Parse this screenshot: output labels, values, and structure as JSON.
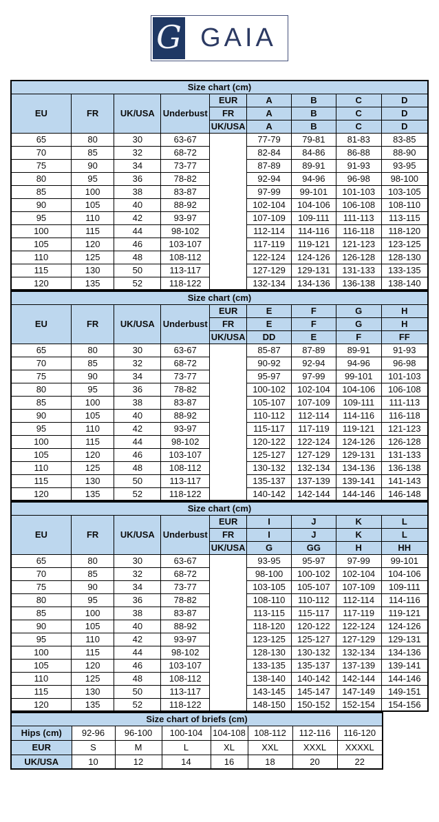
{
  "logo": {
    "monogram": "G",
    "brand": "GAIA"
  },
  "layout_colors": {
    "header_blue": "#bdd7ee",
    "logo_navy": "#1f3864",
    "border_black": "#000000"
  },
  "bra_tables": [
    {
      "title": "Size chart (cm)",
      "col_headers": [
        "EU",
        "FR",
        "UK/USA",
        "Underbust"
      ],
      "cup_rows": [
        {
          "label": "EUR",
          "cups": [
            "A",
            "B",
            "C",
            "D"
          ]
        },
        {
          "label": "FR",
          "cups": [
            "A",
            "B",
            "C",
            "D"
          ]
        },
        {
          "label": "UK/USA",
          "cups": [
            "A",
            "B",
            "C",
            "D"
          ]
        }
      ],
      "rows": [
        {
          "eu": "65",
          "fr": "80",
          "uk_usa": "30",
          "underbust": "63-67",
          "cups": [
            "77-79",
            "79-81",
            "81-83",
            "83-85"
          ]
        },
        {
          "eu": "70",
          "fr": "85",
          "uk_usa": "32",
          "underbust": "68-72",
          "cups": [
            "82-84",
            "84-86",
            "86-88",
            "88-90"
          ]
        },
        {
          "eu": "75",
          "fr": "90",
          "uk_usa": "34",
          "underbust": "73-77",
          "cups": [
            "87-89",
            "89-91",
            "91-93",
            "93-95"
          ]
        },
        {
          "eu": "80",
          "fr": "95",
          "uk_usa": "36",
          "underbust": "78-82",
          "cups": [
            "92-94",
            "94-96",
            "96-98",
            "98-100"
          ]
        },
        {
          "eu": "85",
          "fr": "100",
          "uk_usa": "38",
          "underbust": "83-87",
          "cups": [
            "97-99",
            "99-101",
            "101-103",
            "103-105"
          ]
        },
        {
          "eu": "90",
          "fr": "105",
          "uk_usa": "40",
          "underbust": "88-92",
          "cups": [
            "102-104",
            "104-106",
            "106-108",
            "108-110"
          ]
        },
        {
          "eu": "95",
          "fr": "110",
          "uk_usa": "42",
          "underbust": "93-97",
          "cups": [
            "107-109",
            "109-111",
            "111-113",
            "113-115"
          ]
        },
        {
          "eu": "100",
          "fr": "115",
          "uk_usa": "44",
          "underbust": "98-102",
          "cups": [
            "112-114",
            "114-116",
            "116-118",
            "118-120"
          ]
        },
        {
          "eu": "105",
          "fr": "120",
          "uk_usa": "46",
          "underbust": "103-107",
          "cups": [
            "117-119",
            "119-121",
            "121-123",
            "123-125"
          ]
        },
        {
          "eu": "110",
          "fr": "125",
          "uk_usa": "48",
          "underbust": "108-112",
          "cups": [
            "122-124",
            "124-126",
            "126-128",
            "128-130"
          ]
        },
        {
          "eu": "115",
          "fr": "130",
          "uk_usa": "50",
          "underbust": "113-117",
          "cups": [
            "127-129",
            "129-131",
            "131-133",
            "133-135"
          ]
        },
        {
          "eu": "120",
          "fr": "135",
          "uk_usa": "52",
          "underbust": "118-122",
          "cups": [
            "132-134",
            "134-136",
            "136-138",
            "138-140"
          ]
        }
      ]
    },
    {
      "title": "Size chart (cm)",
      "col_headers": [
        "EU",
        "FR",
        "UK/USA",
        "Underbust"
      ],
      "cup_rows": [
        {
          "label": "EUR",
          "cups": [
            "E",
            "F",
            "G",
            "H"
          ]
        },
        {
          "label": "FR",
          "cups": [
            "E",
            "F",
            "G",
            "H"
          ]
        },
        {
          "label": "UK/USA",
          "cups": [
            "DD",
            "E",
            "F",
            "FF"
          ]
        }
      ],
      "rows": [
        {
          "eu": "65",
          "fr": "80",
          "uk_usa": "30",
          "underbust": "63-67",
          "cups": [
            "85-87",
            "87-89",
            "89-91",
            "91-93"
          ]
        },
        {
          "eu": "70",
          "fr": "85",
          "uk_usa": "32",
          "underbust": "68-72",
          "cups": [
            "90-92",
            "92-94",
            "94-96",
            "96-98"
          ]
        },
        {
          "eu": "75",
          "fr": "90",
          "uk_usa": "34",
          "underbust": "73-77",
          "cups": [
            "95-97",
            "97-99",
            "99-101",
            "101-103"
          ]
        },
        {
          "eu": "80",
          "fr": "95",
          "uk_usa": "36",
          "underbust": "78-82",
          "cups": [
            "100-102",
            "102-104",
            "104-106",
            "106-108"
          ]
        },
        {
          "eu": "85",
          "fr": "100",
          "uk_usa": "38",
          "underbust": "83-87",
          "cups": [
            "105-107",
            "107-109",
            "109-111",
            "111-113"
          ]
        },
        {
          "eu": "90",
          "fr": "105",
          "uk_usa": "40",
          "underbust": "88-92",
          "cups": [
            "110-112",
            "112-114",
            "114-116",
            "116-118"
          ]
        },
        {
          "eu": "95",
          "fr": "110",
          "uk_usa": "42",
          "underbust": "93-97",
          "cups": [
            "115-117",
            "117-119",
            "119-121",
            "121-123"
          ]
        },
        {
          "eu": "100",
          "fr": "115",
          "uk_usa": "44",
          "underbust": "98-102",
          "cups": [
            "120-122",
            "122-124",
            "124-126",
            "126-128"
          ]
        },
        {
          "eu": "105",
          "fr": "120",
          "uk_usa": "46",
          "underbust": "103-107",
          "cups": [
            "125-127",
            "127-129",
            "129-131",
            "131-133"
          ]
        },
        {
          "eu": "110",
          "fr": "125",
          "uk_usa": "48",
          "underbust": "108-112",
          "cups": [
            "130-132",
            "132-134",
            "134-136",
            "136-138"
          ]
        },
        {
          "eu": "115",
          "fr": "130",
          "uk_usa": "50",
          "underbust": "113-117",
          "cups": [
            "135-137",
            "137-139",
            "139-141",
            "141-143"
          ]
        },
        {
          "eu": "120",
          "fr": "135",
          "uk_usa": "52",
          "underbust": "118-122",
          "cups": [
            "140-142",
            "142-144",
            "144-146",
            "146-148"
          ]
        }
      ]
    },
    {
      "title": "Size chart (cm)",
      "col_headers": [
        "EU",
        "FR",
        "UK/USA",
        "Underbust"
      ],
      "cup_rows": [
        {
          "label": "EUR",
          "cups": [
            "I",
            "J",
            "K",
            "L"
          ]
        },
        {
          "label": "FR",
          "cups": [
            "I",
            "J",
            "K",
            "L"
          ]
        },
        {
          "label": "UK/USA",
          "cups": [
            "G",
            "GG",
            "H",
            "HH"
          ]
        }
      ],
      "rows": [
        {
          "eu": "65",
          "fr": "80",
          "uk_usa": "30",
          "underbust": "63-67",
          "cups": [
            "93-95",
            "95-97",
            "97-99",
            "99-101"
          ]
        },
        {
          "eu": "70",
          "fr": "85",
          "uk_usa": "32",
          "underbust": "68-72",
          "cups": [
            "98-100",
            "100-102",
            "102-104",
            "104-106"
          ]
        },
        {
          "eu": "75",
          "fr": "90",
          "uk_usa": "34",
          "underbust": "73-77",
          "cups": [
            "103-105",
            "105-107",
            "107-109",
            "109-111"
          ]
        },
        {
          "eu": "80",
          "fr": "95",
          "uk_usa": "36",
          "underbust": "78-82",
          "cups": [
            "108-110",
            "110-112",
            "112-114",
            "114-116"
          ]
        },
        {
          "eu": "85",
          "fr": "100",
          "uk_usa": "38",
          "underbust": "83-87",
          "cups": [
            "113-115",
            "115-117",
            "117-119",
            "119-121"
          ]
        },
        {
          "eu": "90",
          "fr": "105",
          "uk_usa": "40",
          "underbust": "88-92",
          "cups": [
            "118-120",
            "120-122",
            "122-124",
            "124-126"
          ]
        },
        {
          "eu": "95",
          "fr": "110",
          "uk_usa": "42",
          "underbust": "93-97",
          "cups": [
            "123-125",
            "125-127",
            "127-129",
            "129-131"
          ]
        },
        {
          "eu": "100",
          "fr": "115",
          "uk_usa": "44",
          "underbust": "98-102",
          "cups": [
            "128-130",
            "130-132",
            "132-134",
            "134-136"
          ]
        },
        {
          "eu": "105",
          "fr": "120",
          "uk_usa": "46",
          "underbust": "103-107",
          "cups": [
            "133-135",
            "135-137",
            "137-139",
            "139-141"
          ]
        },
        {
          "eu": "110",
          "fr": "125",
          "uk_usa": "48",
          "underbust": "108-112",
          "cups": [
            "138-140",
            "140-142",
            "142-144",
            "144-146"
          ]
        },
        {
          "eu": "115",
          "fr": "130",
          "uk_usa": "50",
          "underbust": "113-117",
          "cups": [
            "143-145",
            "145-147",
            "147-149",
            "149-151"
          ]
        },
        {
          "eu": "120",
          "fr": "135",
          "uk_usa": "52",
          "underbust": "118-122",
          "cups": [
            "148-150",
            "150-152",
            "152-154",
            "154-156"
          ]
        }
      ]
    }
  ],
  "briefs_table": {
    "title": "Size chart of briefs (cm)",
    "rows": [
      {
        "label": "Hips (cm)",
        "values": [
          "92-96",
          "96-100",
          "100-104",
          "104-108",
          "108-112",
          "112-116",
          "116-120"
        ]
      },
      {
        "label": "EUR",
        "values": [
          "S",
          "M",
          "L",
          "XL",
          "XXL",
          "XXXL",
          "XXXXL"
        ]
      },
      {
        "label": "UK/USA",
        "values": [
          "10",
          "12",
          "14",
          "16",
          "18",
          "20",
          "22"
        ]
      }
    ]
  }
}
